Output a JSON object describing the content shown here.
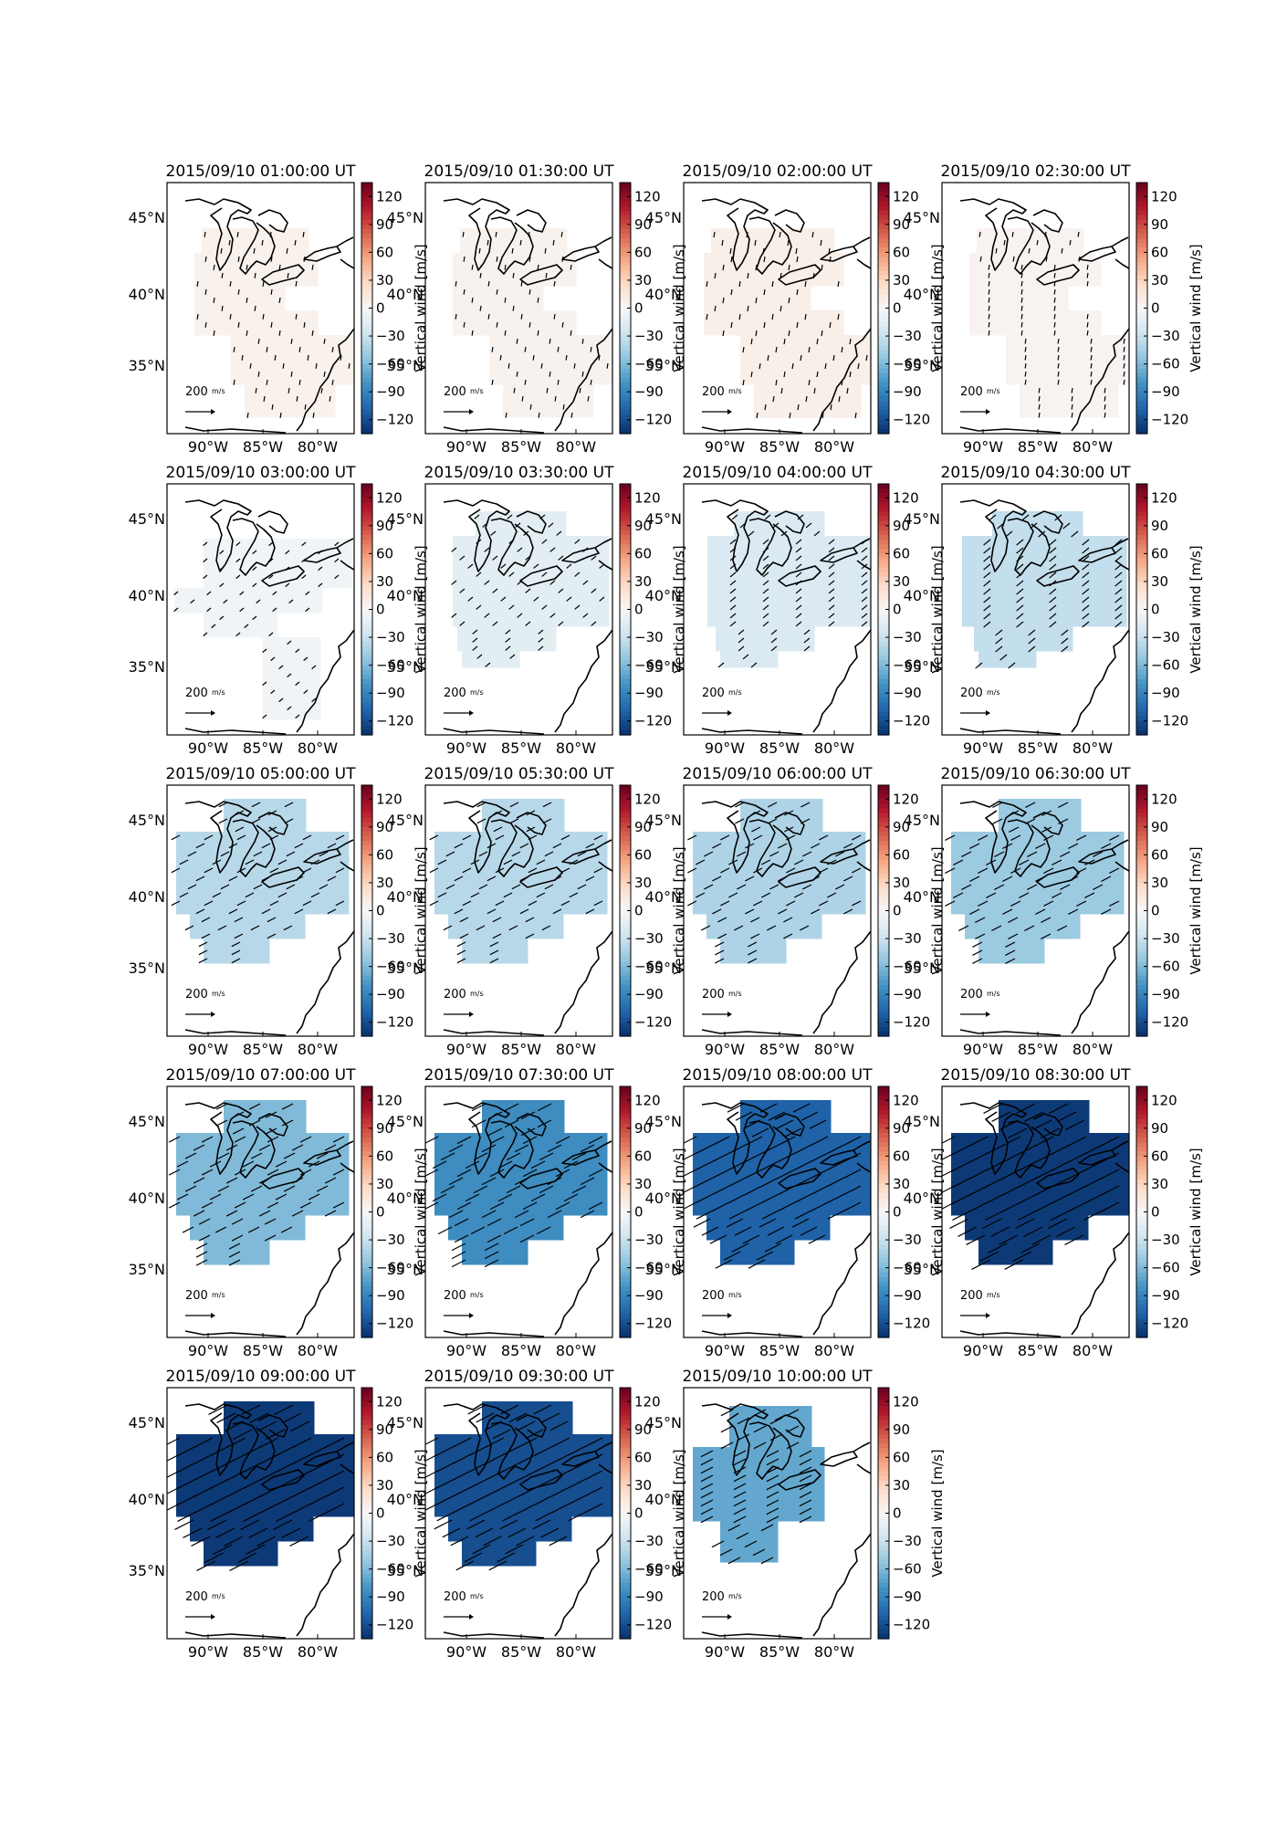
{
  "figure": {
    "colorbar": {
      "label": "Vertical wind [m/s]",
      "ticks": [
        "120",
        "90",
        "60",
        "30",
        "0",
        "−30",
        "−60",
        "−90",
        "−120"
      ],
      "range": [
        -135,
        135
      ],
      "colors": [
        "#08306b",
        "#2166ac",
        "#4393c3",
        "#92c5de",
        "#d1e5f0",
        "#f7f7f7",
        "#fddbc7",
        "#f4a582",
        "#d6604d",
        "#b2182b",
        "#67001f"
      ]
    },
    "axes": {
      "lon_ticks": [
        "90°W",
        "85°W",
        "80°W"
      ],
      "lat_ticks": [
        "45°N",
        "40°N",
        "35°N"
      ]
    },
    "scale_label": "200",
    "scale_unit": "m/s",
    "panels": [
      {
        "title": "2015/09/10 01:00:00 UT",
        "vertical_wind": 6
      },
      {
        "title": "2015/09/10 01:30:00 UT",
        "vertical_wind": 5
      },
      {
        "title": "2015/09/10 02:00:00 UT",
        "vertical_wind": 8
      },
      {
        "title": "2015/09/10 02:30:00 UT",
        "vertical_wind": 4
      },
      {
        "title": "2015/09/10 03:00:00 UT",
        "vertical_wind": -5
      },
      {
        "title": "2015/09/10 03:30:00 UT",
        "vertical_wind": -14
      },
      {
        "title": "2015/09/10 04:00:00 UT",
        "vertical_wind": -20
      },
      {
        "title": "2015/09/10 04:30:00 UT",
        "vertical_wind": -33
      },
      {
        "title": "2015/09/10 05:00:00 UT",
        "vertical_wind": -38
      },
      {
        "title": "2015/09/10 05:30:00 UT",
        "vertical_wind": -38
      },
      {
        "title": "2015/09/10 06:00:00 UT",
        "vertical_wind": -42
      },
      {
        "title": "2015/09/10 06:30:00 UT",
        "vertical_wind": -50
      },
      {
        "title": "2015/09/10 07:00:00 UT",
        "vertical_wind": -60
      },
      {
        "title": "2015/09/10 07:30:00 UT",
        "vertical_wind": -85
      },
      {
        "title": "2015/09/10 08:00:00 UT",
        "vertical_wind": -110
      },
      {
        "title": "2015/09/10 08:30:00 UT",
        "vertical_wind": -130
      },
      {
        "title": "2015/09/10 09:00:00 UT",
        "vertical_wind": -130
      },
      {
        "title": "2015/09/10 09:30:00 UT",
        "vertical_wind": -120
      },
      {
        "title": "2015/09/10 10:00:00 UT",
        "vertical_wind": -70
      }
    ]
  }
}
